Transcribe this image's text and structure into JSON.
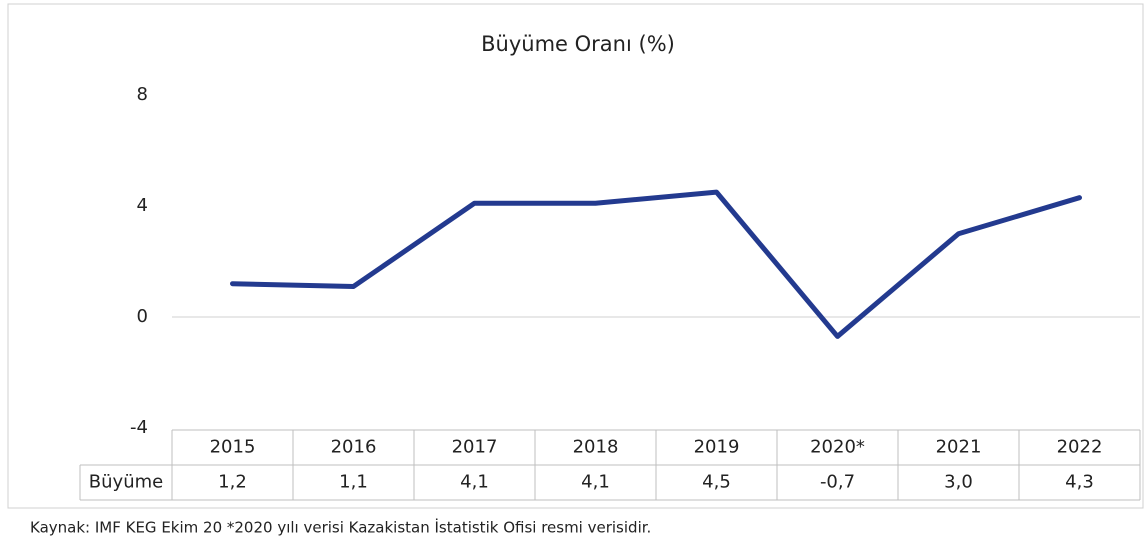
{
  "chart_data": {
    "type": "line",
    "title": "Büyüme Oranı (%)",
    "categories": [
      "2015",
      "2016",
      "2017",
      "2018",
      "2019",
      "2020*",
      "2021",
      "2022"
    ],
    "series": [
      {
        "name": "Büyüme",
        "color": "#233a8f",
        "values": [
          1.2,
          1.1,
          4.1,
          4.1,
          4.5,
          -0.7,
          3.0,
          4.3
        ],
        "value_labels": [
          "1,2",
          "1,1",
          "4,1",
          "4,1",
          "4,5",
          "-0,7",
          "3,0",
          "4,3"
        ]
      }
    ],
    "ylim": [
      -4,
      8
    ],
    "yticks": [
      -4,
      0,
      4,
      8
    ],
    "note": "Kaynak: IMF KEG Ekim 20 *2020 yılı verisi Kazakistan İstatistik Ofisi resmi verisidir."
  }
}
